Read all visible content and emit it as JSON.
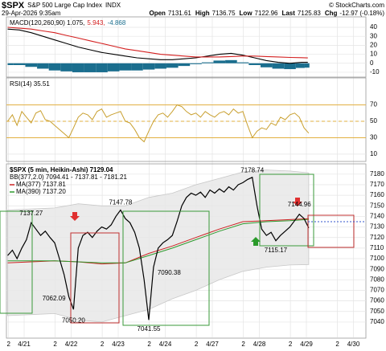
{
  "header": {
    "symbol": "$SPX",
    "name": "S&P 500 Large Cap Index",
    "exchange": "INDX",
    "datetime": "29-Apr-2026 9:35am",
    "credit": "© StockCharts.com",
    "quote": [
      {
        "label": "Open",
        "value": 7131.61
      },
      {
        "label": "High",
        "value": 7136.75
      },
      {
        "label": "Low",
        "value": 7122.96
      },
      {
        "label": "Last",
        "value": 7125.83
      },
      {
        "label": "Chg",
        "value": -12.97,
        "value_label": "-12.97 (-0.18%)"
      }
    ]
  },
  "xaxis": {
    "xlim": [
      -0.376,
      7.265
    ],
    "xticks": [
      {
        "value": -0.33,
        "label": "2"
      },
      {
        "value": 0,
        "label": "4/21"
      },
      {
        "value": 0.66,
        "label": "2"
      },
      {
        "value": 1,
        "label": "4/22"
      },
      {
        "value": 1.66,
        "label": "2"
      },
      {
        "value": 2,
        "label": "4/23"
      },
      {
        "value": 2.66,
        "label": "2"
      },
      {
        "value": 3,
        "label": "4/24"
      },
      {
        "value": 3.66,
        "label": "2"
      },
      {
        "value": 4,
        "label": "4/27"
      },
      {
        "value": 4.66,
        "label": "2"
      },
      {
        "value": 5,
        "label": "4/28"
      },
      {
        "value": 5.66,
        "label": "2"
      },
      {
        "value": 6,
        "label": "4/29"
      },
      {
        "value": 6.66,
        "label": "2"
      },
      {
        "value": 7,
        "label": "4/30"
      }
    ]
  },
  "chart_data": [
    {
      "type": "macd",
      "ylim": [
        -14.5,
        50.7
      ],
      "yticks": [
        40,
        30,
        20,
        10,
        0,
        -10
      ],
      "grid": true,
      "x": [
        -0.35,
        -0.1,
        0.15,
        0.4,
        0.65,
        0.9,
        1.15,
        1.4,
        1.65,
        1.9,
        2.15,
        2.4,
        2.65,
        2.9,
        3.15,
        3.4,
        3.65,
        3.9,
        4.15,
        4.4,
        4.65,
        4.9,
        5.15,
        5.4,
        5.65,
        5.9,
        6.03
      ],
      "series": [
        {
          "name": "MACD(120,260,90) 1.075,",
          "color": "#000000",
          "values": [
            38,
            37,
            34,
            30,
            26,
            22,
            18,
            15,
            12,
            10,
            8,
            6,
            5,
            4,
            4,
            5,
            6,
            8,
            10,
            11,
            9,
            6,
            3,
            1,
            0,
            1,
            1.075
          ]
        },
        {
          "name": "5.943,",
          "color": "#d42020",
          "values": [
            40,
            39,
            38,
            36,
            34,
            31,
            28,
            25,
            22,
            19,
            16,
            14,
            12,
            10,
            9,
            8,
            7,
            7,
            7,
            7.5,
            8,
            8,
            7.5,
            7,
            6.5,
            6.2,
            5.943
          ]
        },
        {
          "name": "-4.868",
          "color": "#1a6e8e",
          "values": [
            -2,
            -2,
            -4,
            -6,
            -8,
            -9,
            -10,
            -10,
            -10,
            -9,
            -8,
            -8,
            -7,
            -6,
            -5,
            -3,
            -1,
            1,
            3,
            3.5,
            1,
            -2,
            -4.5,
            -6,
            -6.5,
            -5.2,
            -4.868
          ]
        }
      ]
    },
    {
      "type": "line",
      "ylim": [
        2,
        102
      ],
      "yticks": [
        70,
        50,
        30,
        10
      ],
      "grid": true,
      "reference_lines": [
        70,
        50,
        30
      ],
      "x": [
        -0.35,
        -0.25,
        -0.15,
        -0.05,
        0.05,
        0.15,
        0.25,
        0.35,
        0.45,
        0.55,
        0.65,
        0.75,
        0.85,
        0.95,
        1.05,
        1.15,
        1.25,
        1.35,
        1.45,
        1.55,
        1.65,
        1.75,
        1.85,
        1.95,
        2.05,
        2.15,
        2.25,
        2.35,
        2.45,
        2.55,
        2.65,
        2.75,
        2.85,
        2.95,
        3.05,
        3.15,
        3.25,
        3.35,
        3.45,
        3.55,
        3.65,
        3.75,
        3.85,
        3.95,
        4.05,
        4.15,
        4.25,
        4.35,
        4.45,
        4.55,
        4.65,
        4.75,
        4.85,
        4.95,
        5.05,
        5.15,
        5.25,
        5.35,
        5.45,
        5.55,
        5.65,
        5.75,
        5.85,
        5.95,
        6.05
      ],
      "series": [
        {
          "name": "RSI(14) 35.51",
          "color": "#c9a030",
          "values": [
            50,
            58,
            45,
            62,
            55,
            48,
            60,
            63,
            52,
            50,
            45,
            40,
            35,
            30,
            42,
            55,
            60,
            58,
            52,
            62,
            65,
            55,
            58,
            60,
            62,
            50,
            48,
            40,
            30,
            25,
            38,
            50,
            58,
            60,
            55,
            62,
            70,
            68,
            62,
            58,
            60,
            55,
            62,
            58,
            55,
            60,
            62,
            58,
            65,
            60,
            62,
            45,
            30,
            38,
            42,
            40,
            48,
            45,
            55,
            52,
            58,
            60,
            55,
            42,
            35.51
          ]
        }
      ]
    },
    {
      "type": "price",
      "ylim": [
        7025.5,
        7189
      ],
      "yticks": [
        7180,
        7170,
        7160,
        7150,
        7140,
        7130,
        7120,
        7110,
        7100,
        7090,
        7080,
        7070,
        7060,
        7050,
        7040
      ],
      "grid": true,
      "series": [
        {
          "name": "$SPX (5 min, Heikin-Ashi) 7129.04",
          "color": "#000000",
          "x": [
            -0.35,
            -0.25,
            -0.15,
            -0.05,
            0.05,
            0.15,
            0.25,
            0.35,
            0.45,
            0.55,
            0.65,
            0.75,
            0.85,
            0.95,
            1.05,
            1.15,
            1.25,
            1.35,
            1.45,
            1.55,
            1.65,
            1.75,
            1.85,
            1.95,
            2.05,
            2.15,
            2.25,
            2.35,
            2.45,
            2.55,
            2.65,
            2.75,
            2.85,
            2.95,
            3.05,
            3.15,
            3.25,
            3.35,
            3.45,
            3.55,
            3.65,
            3.75,
            3.85,
            3.95,
            4.05,
            4.15,
            4.25,
            4.35,
            4.45,
            4.55,
            4.65,
            4.75,
            4.85,
            4.95,
            5.05,
            5.15,
            5.25,
            5.35,
            5.45,
            5.55,
            5.65,
            5.75,
            5.85,
            5.95,
            6.05
          ],
          "values": [
            7103,
            7108,
            7100,
            7110,
            7118,
            7134,
            7128,
            7122,
            7126,
            7120,
            7115,
            7100,
            7085,
            7064,
            7052,
            7110,
            7122,
            7125,
            7120,
            7126,
            7130,
            7128,
            7132,
            7140,
            7146,
            7138,
            7134,
            7125,
            7110,
            7080,
            7042,
            7092,
            7110,
            7115,
            7118,
            7122,
            7135,
            7150,
            7158,
            7162,
            7160,
            7163,
            7158,
            7165,
            7162,
            7166,
            7163,
            7168,
            7165,
            7170,
            7172,
            7175,
            7177,
            7150,
            7128,
            7122,
            7125,
            7117,
            7122,
            7126,
            7130,
            7136,
            7142,
            7138,
            7129.04
          ]
        },
        {
          "name": "BB(377,2.0) 7094.41 - 7137.81 - 7181.21",
          "color": "#c8c8c8",
          "x": [
            -0.35,
            0.15,
            0.65,
            1.15,
            1.65,
            2.15,
            2.65,
            3.15,
            3.65,
            4.15,
            4.65,
            5.15,
            5.65,
            6.05
          ],
          "upper": [
            7146,
            7147,
            7148,
            7152,
            7150,
            7150,
            7158,
            7162,
            7170,
            7176,
            7182,
            7184,
            7183,
            7181.21
          ],
          "lower": [
            7046,
            7047,
            7048,
            7042,
            7040,
            7046,
            7052,
            7062,
            7070,
            7080,
            7088,
            7092,
            7094,
            7094.41
          ]
        },
        {
          "name": "MA(377) 7137.81",
          "color": "#cc2222",
          "x": [
            -0.35,
            0.15,
            0.65,
            1.15,
            1.65,
            2.15,
            2.65,
            3.15,
            3.65,
            4.15,
            4.65,
            5.15,
            5.65,
            6.05
          ],
          "values": [
            7096,
            7097,
            7098,
            7097,
            7095,
            7096,
            7105,
            7112,
            7120,
            7128,
            7135,
            7136,
            7137,
            7137.81
          ]
        },
        {
          "name": "MA(390) 7137.20",
          "color": "#2e9a2e",
          "x": [
            -0.35,
            0.15,
            0.65,
            1.15,
            1.65,
            2.15,
            2.65,
            3.15,
            3.65,
            4.15,
            4.65,
            5.15,
            5.65,
            6.05
          ],
          "values": [
            7098,
            7098,
            7098,
            7097,
            7096,
            7096,
            7103,
            7110,
            7118,
            7126,
            7133,
            7135,
            7136,
            7137.2
          ]
        }
      ],
      "annotations": [
        {
          "x": 0.15,
          "value": 7137.27
        },
        {
          "x": 0.95,
          "value": 7062.09
        },
        {
          "x": 1.05,
          "value": 7050.2,
          "label": "7050.20"
        },
        {
          "x": 2.05,
          "value": 7147.78
        },
        {
          "x": 2.65,
          "value": 7041.55
        },
        {
          "x": 2.75,
          "value": 7090.38
        },
        {
          "x": 4.85,
          "value": 7178.74
        },
        {
          "x": 5.35,
          "value": 7115.17
        },
        {
          "x": 5.85,
          "value": 7144.96
        }
      ]
    }
  ]
}
